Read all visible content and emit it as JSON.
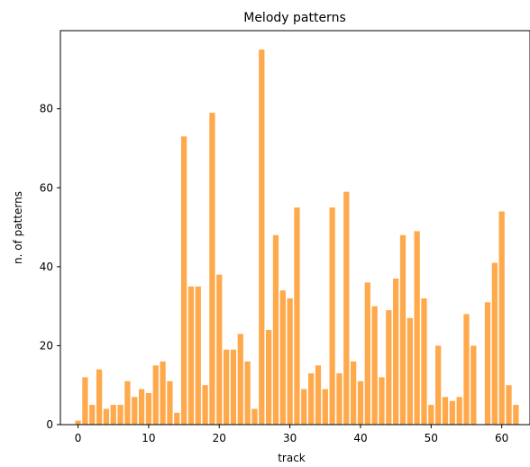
{
  "chart_data": {
    "type": "bar",
    "title": "Melody patterns",
    "xlabel": "track",
    "ylabel": "n. of patterns",
    "x": [
      0,
      1,
      2,
      3,
      4,
      5,
      6,
      7,
      8,
      9,
      10,
      11,
      12,
      13,
      14,
      15,
      16,
      17,
      18,
      19,
      20,
      21,
      22,
      23,
      24,
      25,
      26,
      27,
      28,
      29,
      30,
      31,
      32,
      33,
      34,
      35,
      36,
      37,
      38,
      39,
      40,
      41,
      42,
      43,
      44,
      45,
      46,
      47,
      48,
      49,
      50,
      51,
      52,
      53,
      54,
      55,
      56,
      57,
      58,
      59,
      60,
      61,
      62
    ],
    "values": [
      1,
      12,
      5,
      14,
      4,
      5,
      5,
      11,
      7,
      9,
      8,
      15,
      16,
      11,
      3,
      73,
      35,
      35,
      10,
      79,
      38,
      19,
      19,
      23,
      16,
      4,
      95,
      24,
      48,
      34,
      32,
      55,
      9,
      13,
      15,
      9,
      55,
      13,
      59,
      16,
      11,
      36,
      30,
      12,
      29,
      37,
      48,
      27,
      49,
      32,
      5,
      20,
      7,
      6,
      7,
      28,
      20,
      0,
      31,
      41,
      54,
      10,
      5
    ],
    "xticks": [
      0,
      10,
      20,
      30,
      40,
      50,
      60
    ],
    "yticks": [
      0,
      20,
      40,
      60,
      80
    ],
    "xlim": [
      -2.5,
      64.0
    ],
    "ylim": [
      0,
      99.8
    ],
    "bar_color": "#ffa94d",
    "grid": false,
    "legend": "none"
  }
}
